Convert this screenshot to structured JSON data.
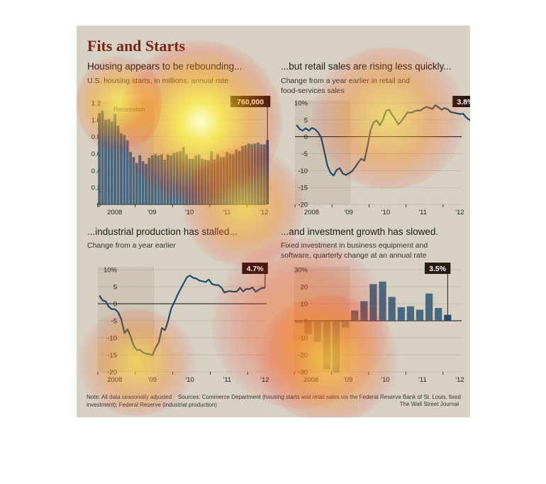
{
  "figure": {
    "title": "Fits and Starts",
    "note": "Note: All data seasonally adjusted",
    "sources": "Sources: Commerce Department (housing starts and retail sales via the Federal Reserve Bank of St. Louis, fixed investment); Federal Reserve (industrial production)",
    "credit": "The Wall Street Journal",
    "colors": {
      "bar": "#3e5e78",
      "line": "#1f4a6b",
      "recession": "#c4b9a7",
      "callout_bg": "#2a1a14",
      "title": "#7a2418"
    }
  },
  "panels": [
    {
      "headline": "Housing appears to be rebounding...",
      "subtitle_lines": [
        "U.S. housing starts, in millions, annual rate"
      ],
      "recession_label": "Recession",
      "callout": "760,000"
    },
    {
      "headline": "...but retail sales are rising less quickly...",
      "subtitle_lines": [
        "Change from a year earlier in retail and",
        "food-services sales"
      ],
      "callout": "3.8%"
    },
    {
      "headline": "...industrial production has stalled...",
      "subtitle_lines": [
        "Change from a year earlier"
      ],
      "callout": "4.7%"
    },
    {
      "headline": "...and investment growth has slowed.",
      "subtitle_lines": [
        "Fixed investment in business equipment and",
        "software, quarterly change at an annual rate"
      ],
      "callout": "3.5%"
    }
  ],
  "chart_data": [
    {
      "type": "bar",
      "ylim": [
        0,
        1.2
      ],
      "yticks": [
        "1.2",
        "1.0",
        "0.8",
        "0.6",
        "0.4",
        "0.2",
        "0"
      ],
      "xticks": [
        "2008",
        "'09",
        "'10",
        "'11",
        "'12"
      ],
      "recession": [
        "2008-01",
        "2009-06"
      ],
      "x_start": "2008-01",
      "values": [
        1.08,
        1.11,
        1.0,
        1.01,
        0.98,
        1.07,
        0.93,
        0.84,
        0.82,
        0.76,
        0.62,
        0.56,
        0.49,
        0.58,
        0.51,
        0.48,
        0.55,
        0.58,
        0.59,
        0.58,
        0.59,
        0.53,
        0.59,
        0.58,
        0.61,
        0.62,
        0.63,
        0.68,
        0.59,
        0.54,
        0.54,
        0.58,
        0.59,
        0.54,
        0.53,
        0.52,
        0.63,
        0.53,
        0.59,
        0.56,
        0.56,
        0.62,
        0.6,
        0.59,
        0.65,
        0.63,
        0.69,
        0.7,
        0.72,
        0.71,
        0.72,
        0.73,
        0.71,
        0.71,
        0.76
      ]
    },
    {
      "type": "line",
      "ylim": [
        -20,
        10
      ],
      "yticks": [
        "10%",
        "5",
        "0",
        "-5",
        "-10",
        "-15",
        "-20"
      ],
      "xticks": [
        "2008",
        "'09",
        "'10",
        "'11",
        "'12"
      ],
      "recession": [
        "2008-01",
        "2009-06"
      ],
      "x_start": "2008-01",
      "values": [
        3.5,
        2.3,
        1.8,
        2.5,
        1.8,
        2.6,
        2.2,
        1.3,
        -0.3,
        -4.2,
        -8.5,
        -10.6,
        -11.5,
        -9.8,
        -9.3,
        -10.9,
        -11.3,
        -10.8,
        -10.2,
        -9.0,
        -7.6,
        -6.5,
        -7.1,
        -2.8,
        2.0,
        4.3,
        4.8,
        3.4,
        5.0,
        7.6,
        8.0,
        6.5,
        5.2,
        3.6,
        4.6,
        5.9,
        7.2,
        7.1,
        7.4,
        7.8,
        7.7,
        8.3,
        8.8,
        8.6,
        8.2,
        9.3,
        8.7,
        8.0,
        8.5,
        8.1,
        7.3,
        7.1,
        6.9,
        6.7,
        6.8,
        5.7,
        5.0,
        4.6,
        3.8
      ]
    },
    {
      "type": "line",
      "ylim": [
        -20,
        10
      ],
      "yticks": [
        "10%",
        "5",
        "0",
        "-5",
        "-10",
        "-15",
        "-20"
      ],
      "xticks": [
        "2008",
        "'09",
        "'10",
        "'11",
        "'12"
      ],
      "recession": [
        "2008-01",
        "2009-06"
      ],
      "x_start": "2008-01",
      "values": [
        2.4,
        1.0,
        0.7,
        -0.9,
        -1.6,
        -1.6,
        -2.5,
        -4.6,
        -8.6,
        -7.5,
        -9.7,
        -12.4,
        -13.6,
        -13.5,
        -14.4,
        -14.7,
        -14.8,
        -15.1,
        -12.9,
        -11.3,
        -7.1,
        -7.8,
        -4.9,
        -1.3,
        0.5,
        2.6,
        4.4,
        6.1,
        7.8,
        8.3,
        7.6,
        7.4,
        6.8,
        6.6,
        6.4,
        7.1,
        5.8,
        5.5,
        5.5,
        4.8,
        3.3,
        3.6,
        3.7,
        3.5,
        3.6,
        4.7,
        3.6,
        4.4,
        4.3,
        4.8,
        3.5,
        4.1,
        4.6,
        4.7
      ]
    },
    {
      "type": "bar",
      "ylim": [
        -30,
        30
      ],
      "yticks": [
        "30%",
        "20",
        "10",
        "0",
        "-10",
        "-20",
        "-30"
      ],
      "xticks": [
        "2008",
        "'09",
        "'10",
        "'11",
        "'12"
      ],
      "recession": [
        "2008-Q1",
        "2009-Q2"
      ],
      "x_start": "2008-Q1",
      "values": [
        -1.5,
        -8,
        -12.5,
        -28.5,
        -30.5,
        -4,
        6,
        11.5,
        21.5,
        23,
        14,
        8,
        8.5,
        6.5,
        16,
        7.5,
        3.5
      ]
    }
  ]
}
